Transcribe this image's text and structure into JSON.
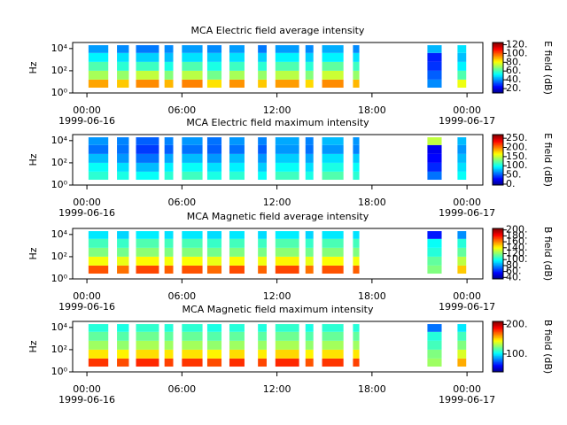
{
  "chart_data": [
    {
      "type": "spectrogram",
      "title": "MCA  Electric field average intensity",
      "ylabel": "Hz",
      "colorbar_label": "E field (dB)",
      "colormap": "jet",
      "log_y": true,
      "xlim": [
        -0.9,
        25
      ],
      "xticks": [
        {
          "value": 0,
          "label": "00:00",
          "date": "1999-06-16"
        },
        {
          "value": 6,
          "label": "06:00"
        },
        {
          "value": 12,
          "label": "12:00"
        },
        {
          "value": 18,
          "label": "18:00"
        },
        {
          "value": 24,
          "label": "00:00",
          "date": "1999-06-17"
        }
      ],
      "ylim": [
        1,
        35000
      ],
      "yticks": [
        {
          "value": 1,
          "label": "10⁰"
        },
        {
          "value": 100,
          "label": "10²"
        },
        {
          "value": 10000,
          "label": "10⁴"
        }
      ],
      "clim": [
        10,
        125
      ],
      "cticks": [
        {
          "value": 20,
          "label": "20."
        },
        {
          "value": 40,
          "label": "40."
        },
        {
          "value": 60,
          "label": "60."
        },
        {
          "value": 80,
          "label": "80."
        },
        {
          "value": 100,
          "label": "100."
        },
        {
          "value": 120,
          "label": "120."
        }
      ],
      "segments": [
        [
          0.1,
          1.35
        ],
        [
          1.9,
          2.65
        ],
        [
          3.1,
          4.55
        ],
        [
          4.9,
          5.45
        ],
        [
          6.0,
          7.3
        ],
        [
          7.6,
          8.5
        ],
        [
          9.0,
          9.95
        ],
        [
          10.8,
          11.35
        ],
        [
          11.9,
          13.4
        ],
        [
          13.8,
          14.3
        ],
        [
          14.85,
          16.2
        ],
        [
          16.8,
          17.2
        ],
        [
          21.5,
          22.4
        ],
        [
          23.4,
          23.95
        ]
      ],
      "freq_bins": [
        3,
        16,
        100,
        630,
        4000,
        20000
      ],
      "values": [
        [
          92,
          72,
          62,
          52,
          42
        ],
        [
          88,
          70,
          58,
          50,
          40
        ],
        [
          95,
          75,
          60,
          48,
          38
        ],
        [
          90,
          68,
          56,
          46,
          40
        ],
        [
          96,
          74,
          62,
          50,
          42
        ],
        [
          85,
          66,
          56,
          48,
          40
        ],
        [
          94,
          72,
          60,
          50,
          42
        ],
        [
          88,
          70,
          58,
          48,
          38
        ],
        [
          93,
          74,
          62,
          52,
          42
        ],
        [
          86,
          68,
          58,
          48,
          40
        ],
        [
          95,
          76,
          64,
          52,
          44
        ],
        [
          90,
          70,
          60,
          50,
          40
        ],
        [
          40,
          35,
          30,
          28,
          45
        ],
        [
          80,
          62,
          52,
          46,
          50
        ]
      ]
    },
    {
      "type": "spectrogram",
      "title": "MCA  Electric field maximum intensity",
      "ylabel": "Hz",
      "colorbar_label": "E field (dB)",
      "colormap": "jet",
      "log_y": true,
      "xlim": [
        -0.9,
        25
      ],
      "xticks": [
        {
          "value": 0,
          "label": "00:00",
          "date": "1999-06-16"
        },
        {
          "value": 6,
          "label": "06:00"
        },
        {
          "value": 12,
          "label": "12:00"
        },
        {
          "value": 18,
          "label": "18:00"
        },
        {
          "value": 24,
          "label": "00:00",
          "date": "1999-06-17"
        }
      ],
      "ylim": [
        1,
        35000
      ],
      "yticks": [
        {
          "value": 1,
          "label": "10⁰"
        },
        {
          "value": 100,
          "label": "10²"
        },
        {
          "value": 10000,
          "label": "10⁴"
        }
      ],
      "clim": [
        -5,
        270
      ],
      "cticks": [
        {
          "value": 0,
          "label": "0."
        },
        {
          "value": 50,
          "label": "50."
        },
        {
          "value": 100,
          "label": "100."
        },
        {
          "value": 150,
          "label": "150."
        },
        {
          "value": 200,
          "label": "200."
        },
        {
          "value": 250,
          "label": "250."
        }
      ],
      "segments": [
        [
          0.1,
          1.35
        ],
        [
          1.9,
          2.65
        ],
        [
          3.1,
          4.55
        ],
        [
          4.9,
          5.45
        ],
        [
          6.0,
          7.3
        ],
        [
          7.6,
          8.5
        ],
        [
          9.0,
          9.95
        ],
        [
          10.8,
          11.35
        ],
        [
          11.9,
          13.4
        ],
        [
          13.8,
          14.3
        ],
        [
          14.85,
          16.2
        ],
        [
          16.8,
          17.2
        ],
        [
          21.5,
          22.4
        ],
        [
          23.4,
          23.95
        ]
      ],
      "freq_bins": [
        3,
        16,
        100,
        630,
        4000,
        20000
      ],
      "values": [
        [
          110,
          100,
          80,
          60,
          70
        ],
        [
          105,
          90,
          70,
          60,
          65
        ],
        [
          100,
          80,
          60,
          45,
          55
        ],
        [
          110,
          95,
          75,
          55,
          65
        ],
        [
          115,
          100,
          80,
          60,
          70
        ],
        [
          105,
          90,
          70,
          55,
          60
        ],
        [
          110,
          95,
          80,
          60,
          70
        ],
        [
          100,
          85,
          70,
          55,
          65
        ],
        [
          115,
          100,
          85,
          70,
          75
        ],
        [
          105,
          90,
          75,
          60,
          65
        ],
        [
          120,
          105,
          90,
          70,
          80
        ],
        [
          110,
          100,
          85,
          65,
          70
        ],
        [
          60,
          40,
          30,
          25,
          150
        ],
        [
          100,
          90,
          80,
          70,
          80
        ]
      ]
    },
    {
      "type": "spectrogram",
      "title": "MCA  Magnetic field average intensity",
      "ylabel": "Hz",
      "colorbar_label": "B field (dB)",
      "colormap": "jet",
      "log_y": true,
      "xlim": [
        -0.9,
        25
      ],
      "xticks": [
        {
          "value": 0,
          "label": "00:00",
          "date": "1999-06-16"
        },
        {
          "value": 6,
          "label": "06:00"
        },
        {
          "value": 12,
          "label": "12:00"
        },
        {
          "value": 18,
          "label": "18:00"
        },
        {
          "value": 24,
          "label": "00:00",
          "date": "1999-06-17"
        }
      ],
      "ylim": [
        1,
        35000
      ],
      "yticks": [
        {
          "value": 1,
          "label": "10⁰"
        },
        {
          "value": 100,
          "label": "10²"
        },
        {
          "value": 10000,
          "label": "10⁴"
        }
      ],
      "clim": [
        35,
        205
      ],
      "cticks": [
        {
          "value": 40,
          "label": "40."
        },
        {
          "value": 60,
          "label": "60."
        },
        {
          "value": 80,
          "label": "80."
        },
        {
          "value": 100,
          "label": "100."
        },
        {
          "value": 120,
          "label": "120."
        },
        {
          "value": 140,
          "label": "140."
        },
        {
          "value": 160,
          "label": "160."
        },
        {
          "value": 180,
          "label": "180."
        },
        {
          "value": 200,
          "label": "200."
        }
      ],
      "segments": [
        [
          0.1,
          1.35
        ],
        [
          1.9,
          2.65
        ],
        [
          3.1,
          4.55
        ],
        [
          4.9,
          5.45
        ],
        [
          6.0,
          7.3
        ],
        [
          7.6,
          8.5
        ],
        [
          9.0,
          9.95
        ],
        [
          10.8,
          11.35
        ],
        [
          11.9,
          13.4
        ],
        [
          13.8,
          14.3
        ],
        [
          14.85,
          16.2
        ],
        [
          16.8,
          17.2
        ],
        [
          21.5,
          22.4
        ],
        [
          23.4,
          23.95
        ]
      ],
      "freq_bins": [
        3,
        16,
        100,
        630,
        4000,
        20000
      ],
      "values": [
        [
          170,
          140,
          120,
          110,
          95
        ],
        [
          165,
          138,
          118,
          108,
          92
        ],
        [
          172,
          142,
          122,
          112,
          96
        ],
        [
          168,
          140,
          120,
          110,
          94
        ],
        [
          170,
          141,
          121,
          111,
          95
        ],
        [
          166,
          138,
          118,
          108,
          93
        ],
        [
          171,
          142,
          120,
          110,
          95
        ],
        [
          167,
          139,
          119,
          109,
          93
        ],
        [
          172,
          143,
          122,
          112,
          96
        ],
        [
          165,
          138,
          118,
          108,
          92
        ],
        [
          170,
          141,
          121,
          111,
          95
        ],
        [
          168,
          140,
          120,
          110,
          94
        ],
        [
          120,
          115,
          105,
          100,
          60
        ],
        [
          150,
          130,
          115,
          105,
          80
        ]
      ]
    },
    {
      "type": "spectrogram",
      "title": "MCA  Magnetic field maximum intensity",
      "ylabel": "Hz",
      "colorbar_label": "B field (dB)",
      "colormap": "jet",
      "log_y": true,
      "xlim": [
        -0.9,
        25
      ],
      "xticks": [
        {
          "value": 0,
          "label": "00:00",
          "date": "1999-06-16"
        },
        {
          "value": 6,
          "label": "06:00"
        },
        {
          "value": 12,
          "label": "12:00"
        },
        {
          "value": 18,
          "label": "18:00"
        },
        {
          "value": 24,
          "label": "00:00",
          "date": "1999-06-17"
        }
      ],
      "ylim": [
        1,
        35000
      ],
      "yticks": [
        {
          "value": 1,
          "label": "10⁰"
        },
        {
          "value": 100,
          "label": "10²"
        },
        {
          "value": 10000,
          "label": "10⁴"
        }
      ],
      "clim": [
        40,
        210
      ],
      "cticks": [
        {
          "value": 100,
          "label": "100."
        },
        {
          "value": 200,
          "label": "200."
        }
      ],
      "segments": [
        [
          0.1,
          1.35
        ],
        [
          1.9,
          2.65
        ],
        [
          3.1,
          4.55
        ],
        [
          4.9,
          5.45
        ],
        [
          6.0,
          7.3
        ],
        [
          7.6,
          8.5
        ],
        [
          9.0,
          9.95
        ],
        [
          10.8,
          11.35
        ],
        [
          11.9,
          13.4
        ],
        [
          13.8,
          14.3
        ],
        [
          14.85,
          16.2
        ],
        [
          16.8,
          17.2
        ],
        [
          21.5,
          22.4
        ],
        [
          23.4,
          23.95
        ]
      ],
      "freq_bins": [
        3,
        16,
        100,
        630,
        4000,
        20000
      ],
      "values": [
        [
          180,
          150,
          130,
          120,
          110
        ],
        [
          176,
          148,
          128,
          118,
          108
        ],
        [
          182,
          152,
          132,
          122,
          112
        ],
        [
          178,
          150,
          130,
          120,
          110
        ],
        [
          180,
          151,
          131,
          121,
          111
        ],
        [
          176,
          148,
          128,
          118,
          108
        ],
        [
          181,
          152,
          130,
          120,
          110
        ],
        [
          177,
          149,
          129,
          119,
          109
        ],
        [
          182,
          153,
          132,
          122,
          112
        ],
        [
          175,
          148,
          128,
          118,
          108
        ],
        [
          180,
          151,
          131,
          121,
          111
        ],
        [
          178,
          150,
          130,
          120,
          110
        ],
        [
          130,
          125,
          115,
          110,
          80
        ],
        [
          160,
          140,
          125,
          115,
          100
        ]
      ]
    }
  ]
}
